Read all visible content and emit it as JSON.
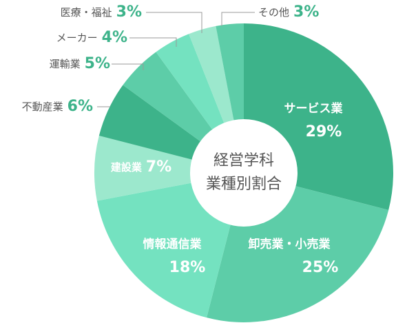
{
  "chart_data": {
    "type": "donut",
    "title": "経営学科",
    "subtitle": "業種別割合",
    "categories": [
      "サービス業",
      "卸売業・小売業",
      "情報通信業",
      "建設業",
      "不動産業",
      "運輸業",
      "メーカー",
      "医療・福祉",
      "その他"
    ],
    "values": [
      29,
      25,
      18,
      7,
      6,
      5,
      4,
      3,
      3
    ],
    "value_labels": [
      "29%",
      "25%",
      "18%",
      "7%",
      "6%",
      "5%",
      "4%",
      "3%",
      "3%"
    ],
    "colors": [
      "#3db38a",
      "#5dcda8",
      "#74e2c0",
      "#9ce8cd",
      "#3db38a",
      "#5dcda8",
      "#74e2c0",
      "#9ce8cd",
      "#5dcda8"
    ]
  }
}
